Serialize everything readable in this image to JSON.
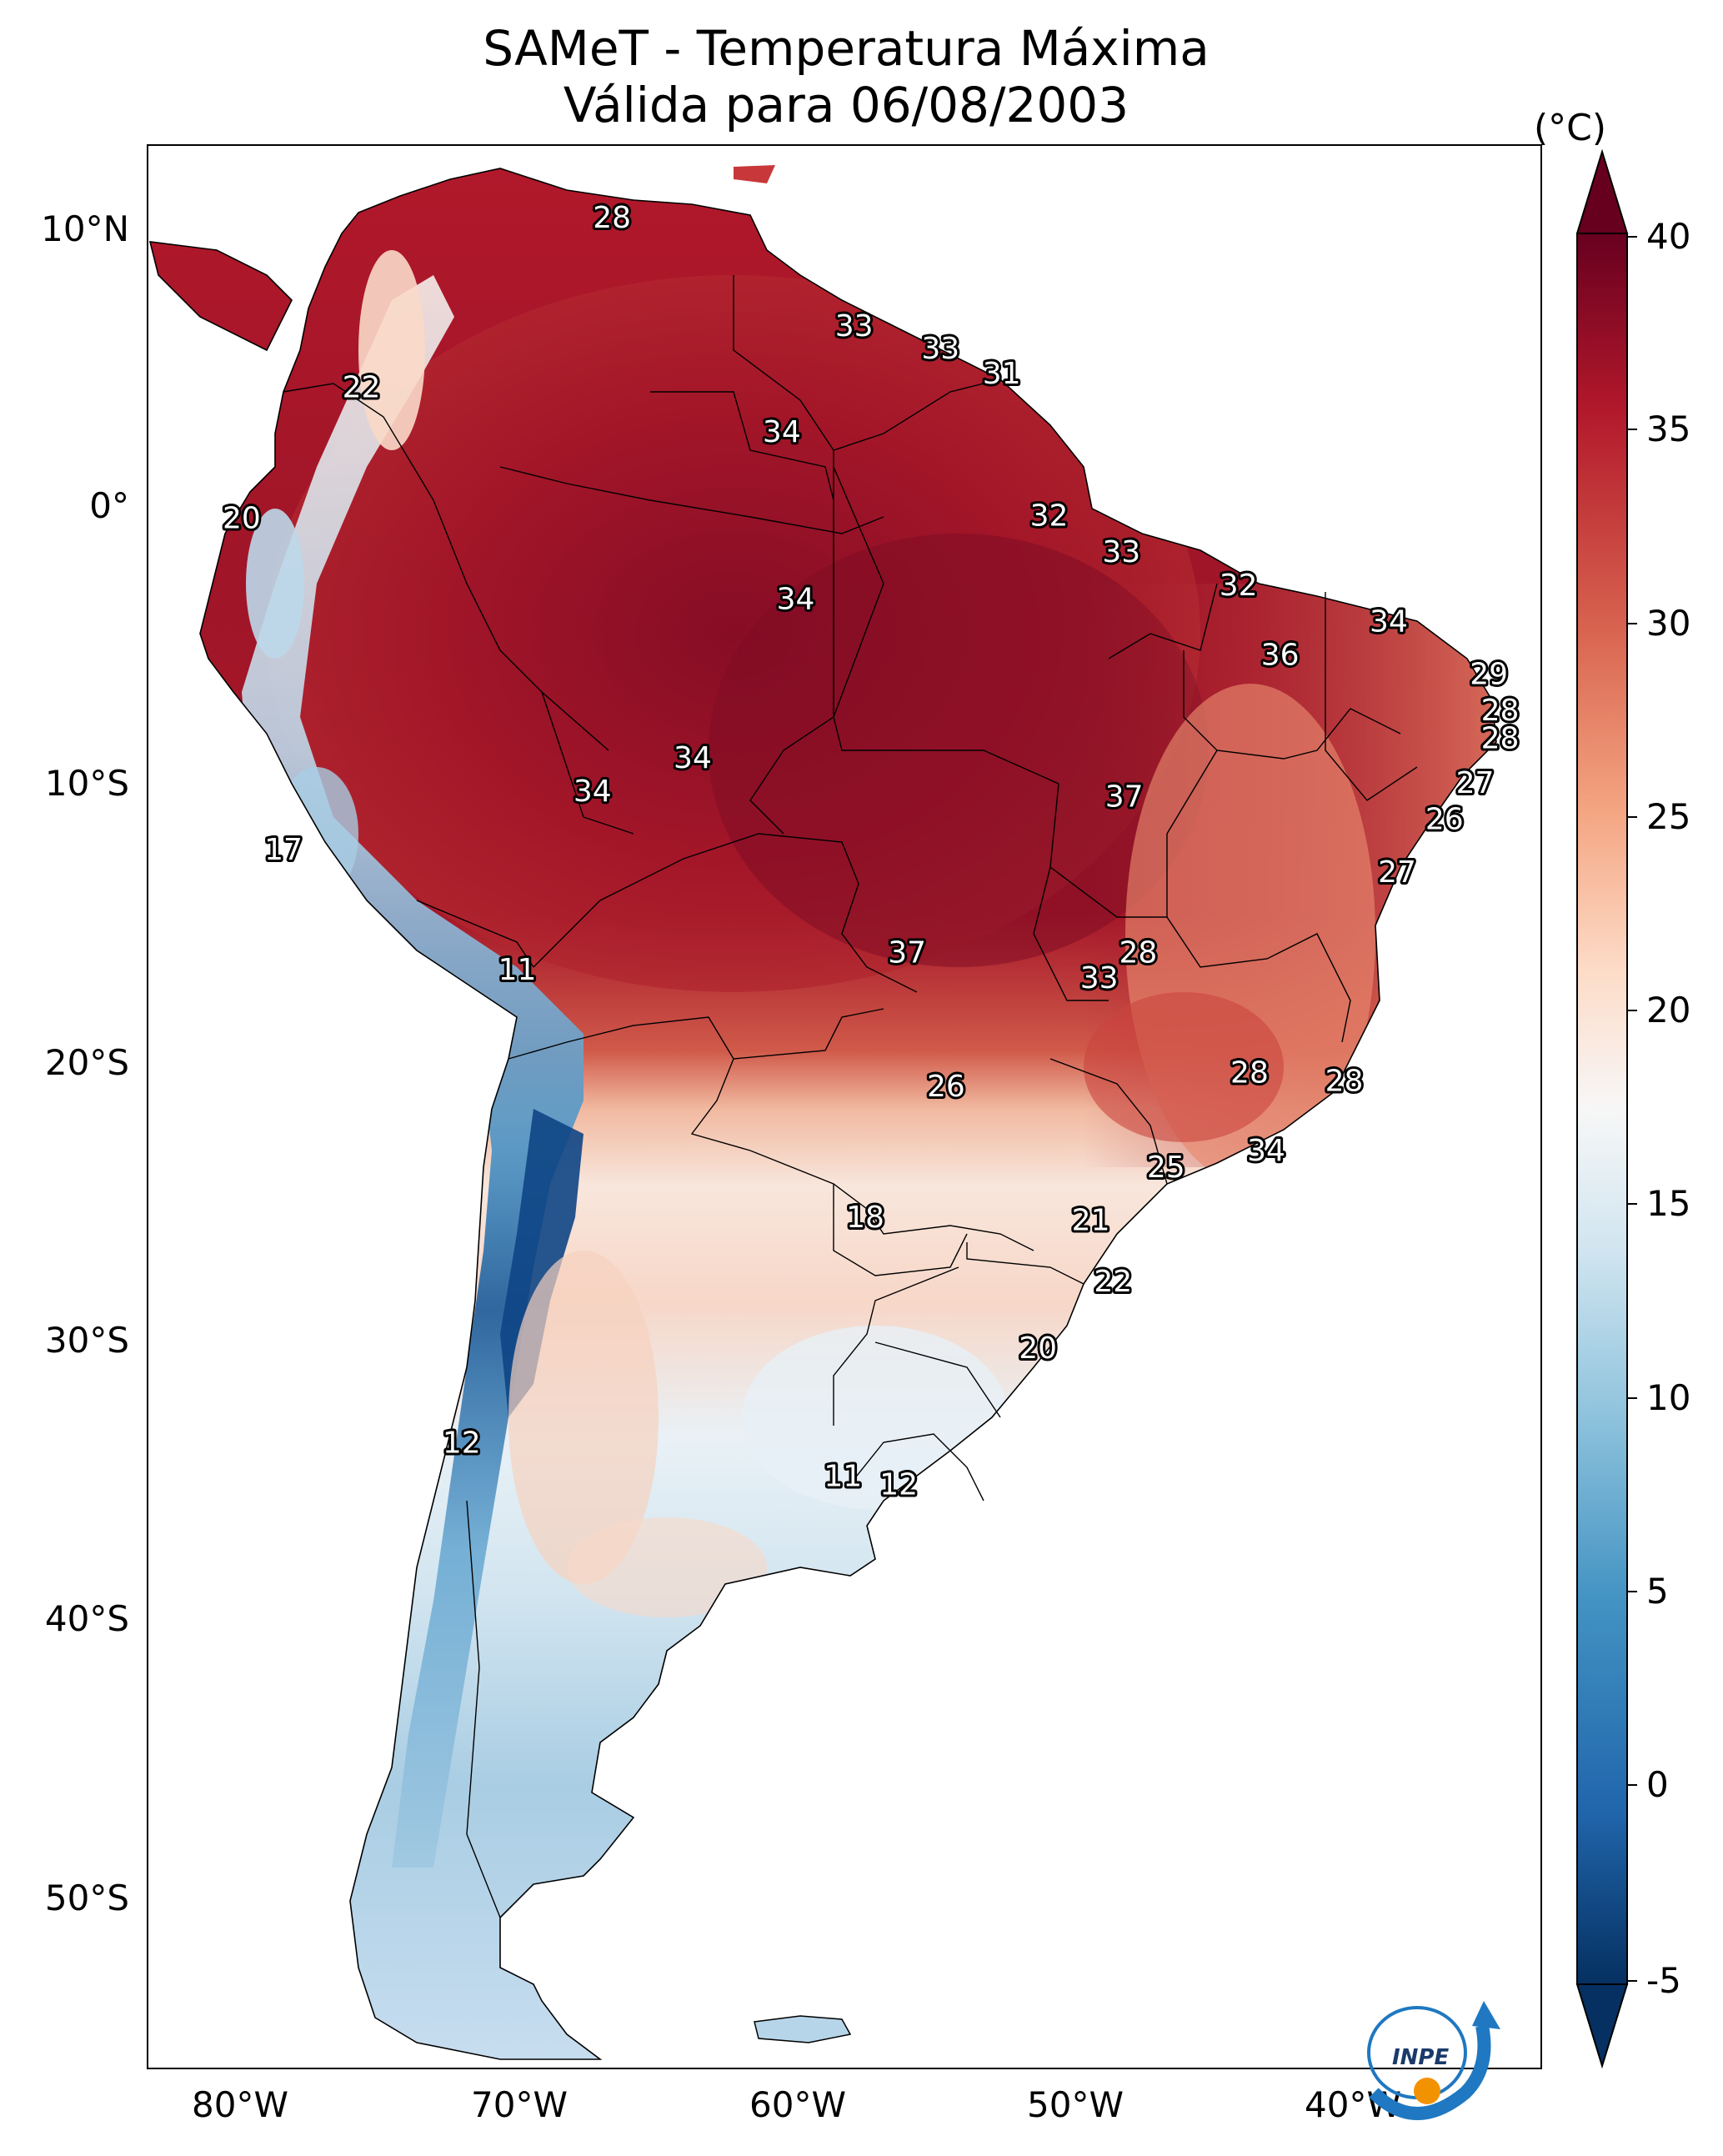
{
  "title_line1": "SAMeT - Temperatura Máxima",
  "title_line2": "Válida para 06/08/2003",
  "colorbar": {
    "unit": "(°C)",
    "ticks": [
      "40",
      "35",
      "30",
      "25",
      "20",
      "15",
      "10",
      "5",
      "0",
      "-5"
    ],
    "range": [
      -5,
      40
    ],
    "extend": "both",
    "colormap": "RdBu_r",
    "colors": [
      "#053061",
      "#2166ac",
      "#4393c3",
      "#92c5de",
      "#d1e5f0",
      "#f7f7f7",
      "#fddbc7",
      "#f4a582",
      "#d6604d",
      "#b2182b",
      "#67001f"
    ]
  },
  "axes": {
    "lat_labels": [
      "10°N",
      "0°",
      "10°S",
      "20°S",
      "30°S",
      "40°S",
      "50°S"
    ],
    "lon_labels": [
      "80°W",
      "70°W",
      "60°W",
      "50°W",
      "40°W"
    ],
    "lon_range": [
      -83,
      -33
    ],
    "lat_range": [
      -56,
      13
    ]
  },
  "station_labels": [
    {
      "text": "28",
      "lon": -66.5,
      "lat": 10.6
    },
    {
      "text": "33",
      "lon": -57.8,
      "lat": 6.7
    },
    {
      "text": "33",
      "lon": -54.7,
      "lat": 5.9
    },
    {
      "text": "31",
      "lon": -52.5,
      "lat": 5.0
    },
    {
      "text": "22",
      "lon": -75.5,
      "lat": 4.5
    },
    {
      "text": "34",
      "lon": -60.4,
      "lat": 2.9
    },
    {
      "text": "20",
      "lon": -79.8,
      "lat": -0.2
    },
    {
      "text": "32",
      "lon": -50.8,
      "lat": -0.1
    },
    {
      "text": "33",
      "lon": -48.2,
      "lat": -1.4
    },
    {
      "text": "32",
      "lon": -44.0,
      "lat": -2.6
    },
    {
      "text": "34",
      "lon": -59.9,
      "lat": -3.1
    },
    {
      "text": "34",
      "lon": -38.6,
      "lat": -3.9
    },
    {
      "text": "36",
      "lon": -42.5,
      "lat": -5.1
    },
    {
      "text": "29",
      "lon": -35.0,
      "lat": -5.8
    },
    {
      "text": "28",
      "lon": -34.6,
      "lat": -7.1
    },
    {
      "text": "28",
      "lon": -34.6,
      "lat": -8.1
    },
    {
      "text": "34",
      "lon": -63.6,
      "lat": -8.8
    },
    {
      "text": "27",
      "lon": -35.5,
      "lat": -9.7
    },
    {
      "text": "34",
      "lon": -67.2,
      "lat": -10.0
    },
    {
      "text": "37",
      "lon": -48.1,
      "lat": -10.2
    },
    {
      "text": "26",
      "lon": -36.6,
      "lat": -11.0
    },
    {
      "text": "17",
      "lon": -78.3,
      "lat": -12.1
    },
    {
      "text": "27",
      "lon": -38.3,
      "lat": -12.9
    },
    {
      "text": "37",
      "lon": -55.9,
      "lat": -15.8
    },
    {
      "text": "28",
      "lon": -47.6,
      "lat": -15.8
    },
    {
      "text": "11",
      "lon": -69.9,
      "lat": -16.4
    },
    {
      "text": "33",
      "lon": -49.0,
      "lat": -16.7
    },
    {
      "text": "28",
      "lon": -43.6,
      "lat": -20.1
    },
    {
      "text": "28",
      "lon": -40.2,
      "lat": -20.4
    },
    {
      "text": "26",
      "lon": -54.5,
      "lat": -20.6
    },
    {
      "text": "34",
      "lon": -43.0,
      "lat": -22.9
    },
    {
      "text": "25",
      "lon": -46.6,
      "lat": -23.5
    },
    {
      "text": "18",
      "lon": -57.4,
      "lat": -25.3
    },
    {
      "text": "21",
      "lon": -49.3,
      "lat": -25.4
    },
    {
      "text": "22",
      "lon": -48.5,
      "lat": -27.6
    },
    {
      "text": "20",
      "lon": -51.2,
      "lat": -30.0
    },
    {
      "text": "12",
      "lon": -71.9,
      "lat": -33.4
    },
    {
      "text": "11",
      "lon": -58.2,
      "lat": -34.6
    },
    {
      "text": "12",
      "lon": -56.2,
      "lat": -34.9
    }
  ],
  "logo": {
    "text": "INPE"
  }
}
